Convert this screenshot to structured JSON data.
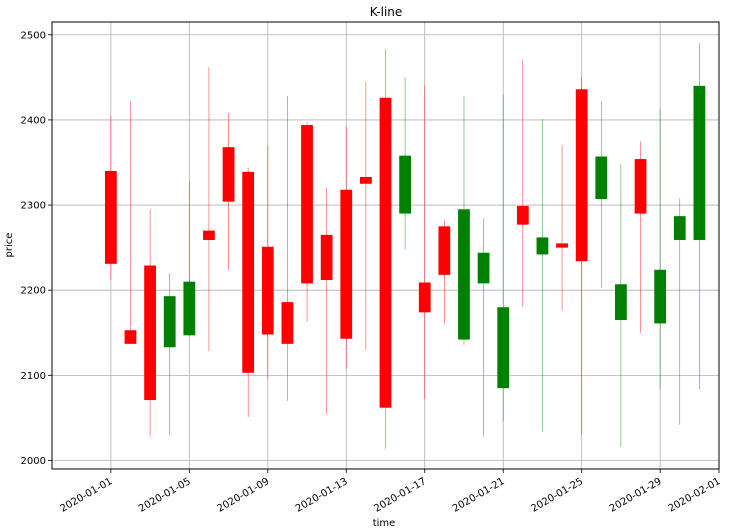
{
  "chart_data": {
    "type": "candlestick",
    "title": "K-line",
    "xlabel": "time",
    "ylabel": "price",
    "ylim": [
      1990,
      2515
    ],
    "xlim": [
      "2019-12-29",
      "2020-02-01"
    ],
    "grid": true,
    "colors": {
      "up": "#008000",
      "down": "#ff0000"
    },
    "yticks": [
      2000,
      2100,
      2200,
      2300,
      2400,
      2500
    ],
    "xticks": [
      "2020-01-01",
      "2020-01-05",
      "2020-01-09",
      "2020-01-13",
      "2020-01-17",
      "2020-01-21",
      "2020-01-25",
      "2020-01-29",
      "2020-02-01"
    ],
    "candles": [
      {
        "date": "2020-01-01",
        "open": 2340,
        "close": 2231,
        "high": 2405,
        "low": 2212
      },
      {
        "date": "2020-01-02",
        "open": 2153,
        "close": 2137,
        "high": 2422,
        "low": 2137
      },
      {
        "date": "2020-01-03",
        "open": 2229,
        "close": 2071,
        "high": 2295,
        "low": 2028
      },
      {
        "date": "2020-01-04",
        "open": 2133,
        "close": 2193,
        "high": 2220,
        "low": 2030
      },
      {
        "date": "2020-01-05",
        "open": 2147,
        "close": 2210,
        "high": 2328,
        "low": 2147
      },
      {
        "date": "2020-01-06",
        "open": 2270,
        "close": 2259,
        "high": 2462,
        "low": 2128
      },
      {
        "date": "2020-01-07",
        "open": 2368,
        "close": 2304,
        "high": 2408,
        "low": 2224
      },
      {
        "date": "2020-01-08",
        "open": 2339,
        "close": 2103,
        "high": 2344,
        "low": 2051
      },
      {
        "date": "2020-01-09",
        "open": 2251,
        "close": 2148,
        "high": 2370,
        "low": 2096
      },
      {
        "date": "2020-01-10",
        "open": 2186,
        "close": 2137,
        "high": 2428,
        "low": 2070
      },
      {
        "date": "2020-01-11",
        "open": 2394,
        "close": 2208,
        "high": 2398,
        "low": 2163
      },
      {
        "date": "2020-01-12",
        "open": 2265,
        "close": 2212,
        "high": 2320,
        "low": 2055
      },
      {
        "date": "2020-01-13",
        "open": 2318,
        "close": 2143,
        "high": 2392,
        "low": 2109
      },
      {
        "date": "2020-01-14",
        "open": 2333,
        "close": 2325,
        "high": 2445,
        "low": 2130
      },
      {
        "date": "2020-01-15",
        "open": 2426,
        "close": 2062,
        "high": 2483,
        "low": 2014
      },
      {
        "date": "2020-01-16",
        "open": 2290,
        "close": 2358,
        "high": 2450,
        "low": 2248
      },
      {
        "date": "2020-01-17",
        "open": 2209,
        "close": 2174,
        "high": 2441,
        "low": 2072
      },
      {
        "date": "2020-01-18",
        "open": 2275,
        "close": 2218,
        "high": 2283,
        "low": 2160
      },
      {
        "date": "2020-01-19",
        "open": 2142,
        "close": 2295,
        "high": 2428,
        "low": 2136
      },
      {
        "date": "2020-01-20",
        "open": 2208,
        "close": 2244,
        "high": 2284,
        "low": 2028
      },
      {
        "date": "2020-01-21",
        "open": 2085,
        "close": 2180,
        "high": 2430,
        "low": 2046
      },
      {
        "date": "2020-01-22",
        "open": 2299,
        "close": 2277,
        "high": 2471,
        "low": 2180
      },
      {
        "date": "2020-01-23",
        "open": 2242,
        "close": 2262,
        "high": 2401,
        "low": 2034
      },
      {
        "date": "2020-01-24",
        "open": 2255,
        "close": 2250,
        "high": 2370,
        "low": 2176
      },
      {
        "date": "2020-01-25",
        "open": 2436,
        "close": 2234,
        "high": 2450,
        "low": 2030
      },
      {
        "date": "2020-01-26",
        "open": 2307,
        "close": 2357,
        "high": 2422,
        "low": 2203
      },
      {
        "date": "2020-01-27",
        "open": 2165,
        "close": 2207,
        "high": 2348,
        "low": 2016
      },
      {
        "date": "2020-01-28",
        "open": 2354,
        "close": 2290,
        "high": 2375,
        "low": 2150
      },
      {
        "date": "2020-01-29",
        "open": 2161,
        "close": 2224,
        "high": 2413,
        "low": 2084
      },
      {
        "date": "2020-01-30",
        "open": 2259,
        "close": 2287,
        "high": 2308,
        "low": 2042
      },
      {
        "date": "2020-01-31",
        "open": 2259,
        "close": 2440,
        "high": 2490,
        "low": 2084
      }
    ]
  }
}
